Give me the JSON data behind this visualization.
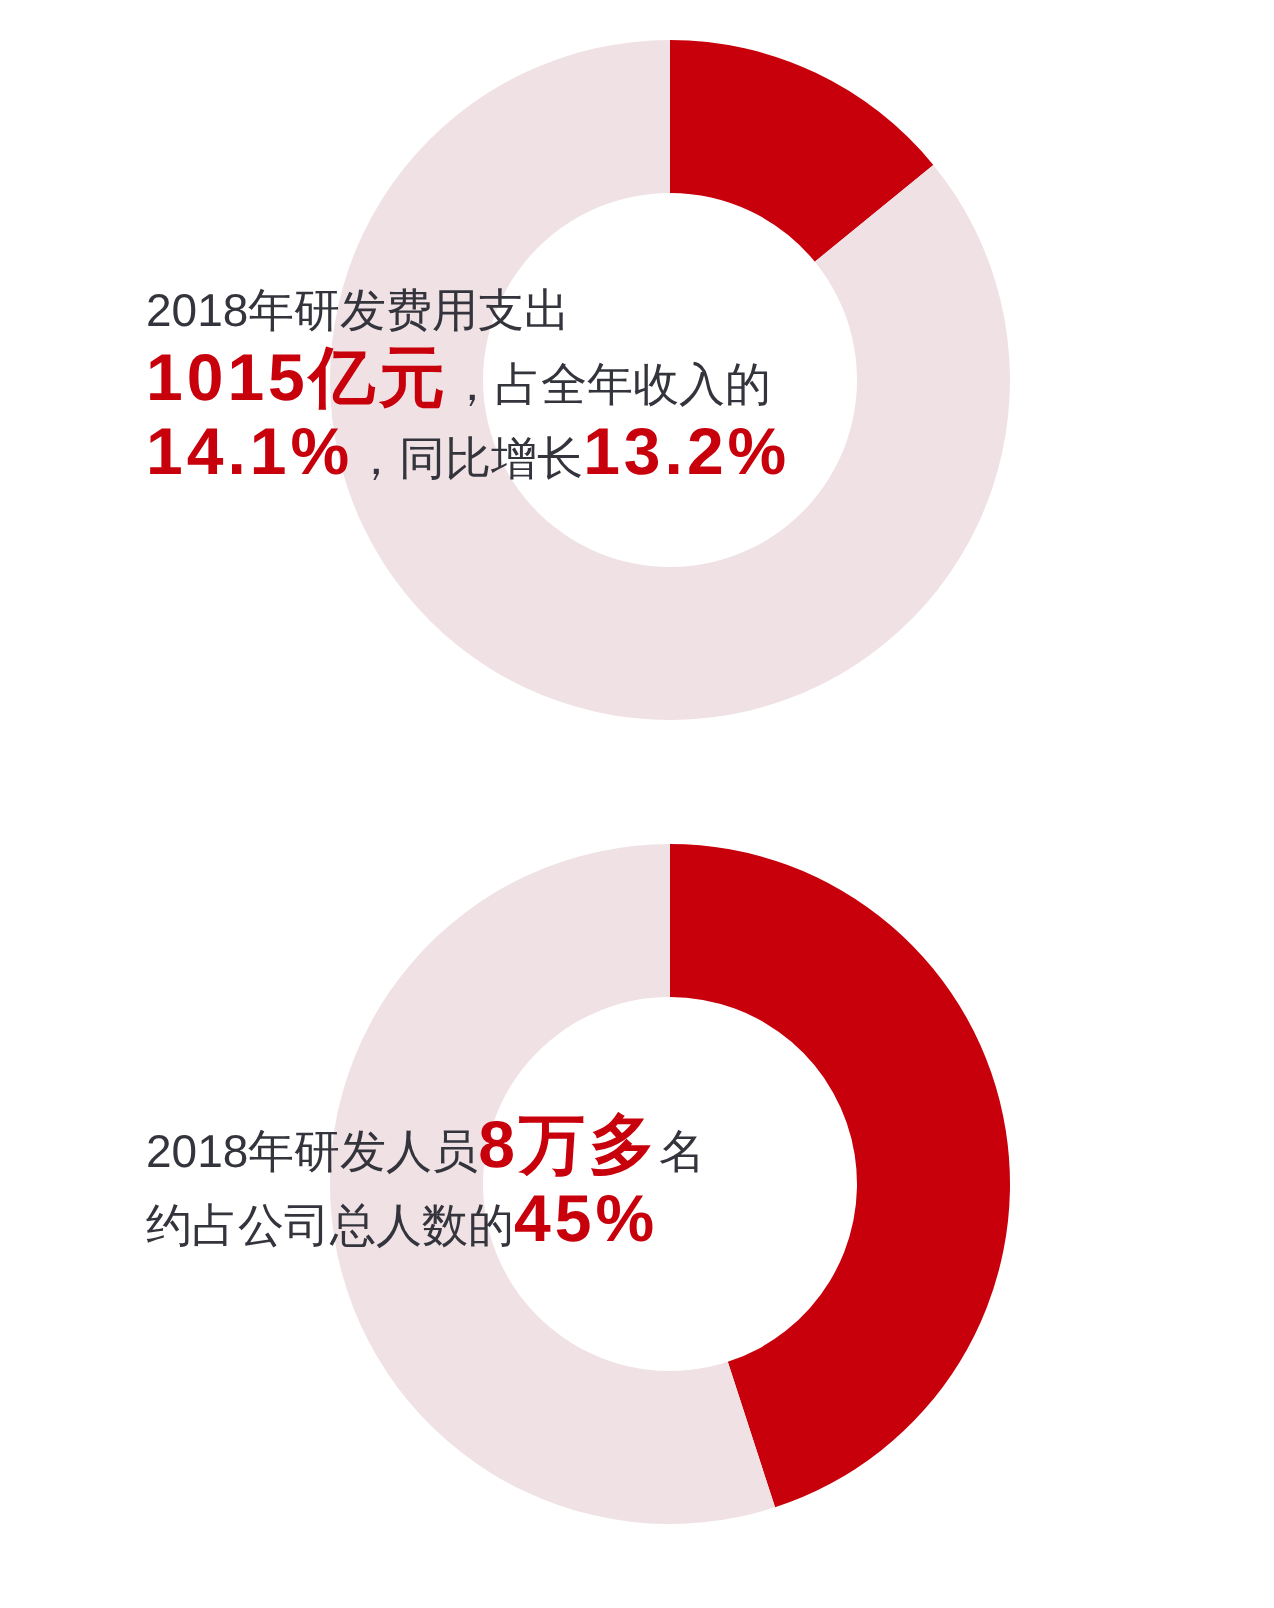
{
  "chart_data": [
    {
      "type": "donut",
      "categories": [
        null,
        null
      ],
      "values": [
        14.1,
        85.9
      ],
      "colors": [
        "#c8000b",
        "#f0e1e4"
      ],
      "annotations": [
        "2018年研发费用支出\n",
        "1015亿元",
        "，占全年收入的\n",
        "14.1%",
        "，同比增长",
        "13.2%"
      ]
    },
    {
      "type": "donut",
      "categories": [
        null,
        null
      ],
      "values": [
        45,
        55
      ],
      "colors": [
        "#c8000b",
        "#f0e1e4"
      ],
      "annotations": [
        "2018年研发人员",
        "8万多",
        "名\n",
        "约占公司总人数的",
        "45%"
      ]
    }
  ]
}
